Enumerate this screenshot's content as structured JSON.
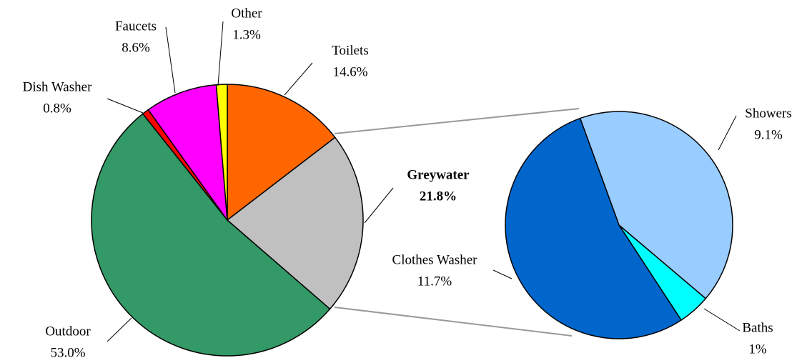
{
  "chart_data": [
    {
      "type": "pie",
      "categories": [
        "Toilets",
        "Greywater",
        "Outdoor",
        "Dish Washer",
        "Faucets",
        "Other"
      ],
      "values": [
        14.6,
        21.8,
        53.0,
        0.8,
        8.6,
        1.3
      ],
      "value_labels": [
        "14.6%",
        "21.8%",
        "53.0%",
        "0.8%",
        "8.6%",
        "1.3%"
      ],
      "colors": [
        "#ff6600",
        "#c0c0c0",
        "#339966",
        "#ff0000",
        "#ff00ff",
        "#ffff00"
      ]
    },
    {
      "type": "pie",
      "categories": [
        "Showers",
        "Baths",
        "Clothes Washer"
      ],
      "values": [
        9.1,
        1,
        11.7
      ],
      "value_labels": [
        "9.1%",
        "1%",
        "11.7%"
      ],
      "colors": [
        "#99ccff",
        "#00ffff",
        "#0066cc"
      ]
    }
  ]
}
